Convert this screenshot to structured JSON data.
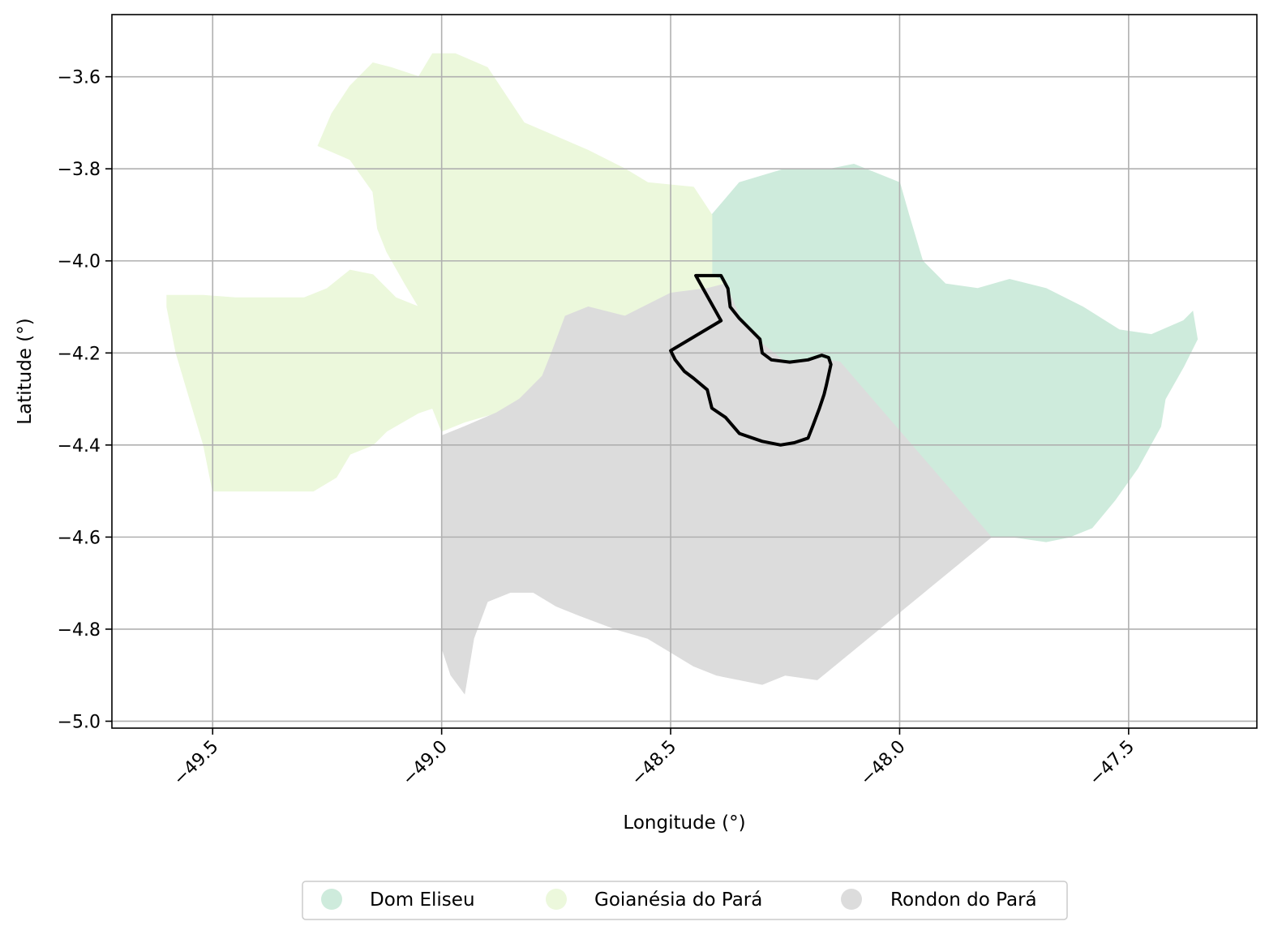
{
  "chart_data": {
    "type": "map",
    "xlabel": "Longitude (°)",
    "ylabel": "Latitude (°)",
    "xlim": [
      -49.72,
      -47.22
    ],
    "ylim": [
      -5.015,
      -3.465
    ],
    "x_ticks": [
      -49.5,
      -49.0,
      -48.5,
      -48.0,
      -47.5
    ],
    "x_tick_labels": [
      "−49.5",
      "−49.0",
      "−48.5",
      "−48.0",
      "−47.5"
    ],
    "y_ticks": [
      -3.6,
      -3.8,
      -4.0,
      -4.2,
      -4.4,
      -4.6,
      -4.8,
      -5.0
    ],
    "y_tick_labels": [
      "−3.6",
      "−3.8",
      "−4.0",
      "−4.2",
      "−4.4",
      "−4.6",
      "−4.8",
      "−5.0"
    ],
    "grid": true,
    "legend_position": "bottom-center",
    "regions": [
      {
        "name": "Dom Eliseu",
        "color": "#ceebdc",
        "polygon": [
          [
            -48.41,
            -3.9
          ],
          [
            -48.35,
            -3.83
          ],
          [
            -48.25,
            -3.8
          ],
          [
            -48.15,
            -3.8
          ],
          [
            -48.1,
            -3.79
          ],
          [
            -48.05,
            -3.81
          ],
          [
            -48.0,
            -3.83
          ],
          [
            -47.98,
            -3.9
          ],
          [
            -47.95,
            -4.0
          ],
          [
            -47.9,
            -4.05
          ],
          [
            -47.83,
            -4.06
          ],
          [
            -47.76,
            -4.04
          ],
          [
            -47.68,
            -4.06
          ],
          [
            -47.6,
            -4.1
          ],
          [
            -47.52,
            -4.15
          ],
          [
            -47.45,
            -4.16
          ],
          [
            -47.38,
            -4.13
          ],
          [
            -47.36,
            -4.11
          ],
          [
            -47.35,
            -4.17
          ],
          [
            -47.38,
            -4.23
          ],
          [
            -47.42,
            -4.3
          ],
          [
            -47.43,
            -4.36
          ],
          [
            -47.48,
            -4.45
          ],
          [
            -47.53,
            -4.52
          ],
          [
            -47.58,
            -4.58
          ],
          [
            -47.63,
            -4.6
          ],
          [
            -47.68,
            -4.61
          ],
          [
            -47.75,
            -4.6
          ],
          [
            -47.8,
            -4.6
          ],
          [
            -48.13,
            -4.22
          ],
          [
            -48.18,
            -4.21
          ],
          [
            -48.25,
            -4.22
          ],
          [
            -48.3,
            -4.18
          ],
          [
            -48.35,
            -4.12
          ],
          [
            -48.38,
            -4.08
          ],
          [
            -48.41,
            -4.03
          ],
          [
            -48.41,
            -4.0
          ]
        ]
      },
      {
        "name": "Goianésia do Pará",
        "color": "#ecf8dc",
        "polygon": [
          [
            -49.6,
            -4.075
          ],
          [
            -49.52,
            -4.075
          ],
          [
            -49.45,
            -4.08
          ],
          [
            -49.3,
            -4.08
          ],
          [
            -49.25,
            -4.06
          ],
          [
            -49.2,
            -4.02
          ],
          [
            -49.15,
            -4.03
          ],
          [
            -49.1,
            -4.08
          ],
          [
            -49.05,
            -4.1
          ],
          [
            -49.08,
            -4.05
          ],
          [
            -49.12,
            -3.98
          ],
          [
            -49.14,
            -3.93
          ],
          [
            -49.15,
            -3.85
          ],
          [
            -49.2,
            -3.78
          ],
          [
            -49.27,
            -3.75
          ],
          [
            -49.24,
            -3.68
          ],
          [
            -49.2,
            -3.62
          ],
          [
            -49.15,
            -3.57
          ],
          [
            -49.11,
            -3.58
          ],
          [
            -49.05,
            -3.6
          ],
          [
            -49.02,
            -3.55
          ],
          [
            -48.97,
            -3.55
          ],
          [
            -48.9,
            -3.58
          ],
          [
            -48.86,
            -3.64
          ],
          [
            -48.82,
            -3.7
          ],
          [
            -48.75,
            -3.73
          ],
          [
            -48.68,
            -3.76
          ],
          [
            -48.6,
            -3.8
          ],
          [
            -48.55,
            -3.83
          ],
          [
            -48.45,
            -3.84
          ],
          [
            -48.41,
            -3.9
          ],
          [
            -48.41,
            -4.03
          ],
          [
            -48.38,
            -4.05
          ],
          [
            -48.42,
            -4.06
          ],
          [
            -48.5,
            -4.08
          ],
          [
            -48.6,
            -4.12
          ],
          [
            -48.68,
            -4.1
          ],
          [
            -48.73,
            -4.12
          ],
          [
            -48.76,
            -4.2
          ],
          [
            -48.78,
            -4.25
          ],
          [
            -48.83,
            -4.3
          ],
          [
            -48.88,
            -4.33
          ],
          [
            -48.95,
            -4.35
          ],
          [
            -49.0,
            -4.37
          ],
          [
            -49.02,
            -4.32
          ],
          [
            -49.05,
            -4.33
          ],
          [
            -49.12,
            -4.37
          ],
          [
            -49.15,
            -4.4
          ],
          [
            -49.2,
            -4.42
          ],
          [
            -49.23,
            -4.47
          ],
          [
            -49.28,
            -4.5
          ],
          [
            -49.5,
            -4.5
          ],
          [
            -49.52,
            -4.4
          ],
          [
            -49.55,
            -4.3
          ],
          [
            -49.58,
            -4.2
          ],
          [
            -49.6,
            -4.1
          ]
        ]
      },
      {
        "name": "Rondon do Pará",
        "color": "#dcdcdc",
        "polygon": [
          [
            -48.5,
            -4.07
          ],
          [
            -48.42,
            -4.06
          ],
          [
            -48.38,
            -4.05
          ],
          [
            -48.35,
            -4.12
          ],
          [
            -48.3,
            -4.18
          ],
          [
            -48.25,
            -4.22
          ],
          [
            -48.18,
            -4.21
          ],
          [
            -48.13,
            -4.22
          ],
          [
            -47.8,
            -4.6
          ],
          [
            -48.18,
            -4.91
          ],
          [
            -48.25,
            -4.9
          ],
          [
            -48.3,
            -4.92
          ],
          [
            -48.35,
            -4.91
          ],
          [
            -48.4,
            -4.9
          ],
          [
            -48.45,
            -4.88
          ],
          [
            -48.5,
            -4.85
          ],
          [
            -48.55,
            -4.82
          ],
          [
            -48.62,
            -4.8
          ],
          [
            -48.7,
            -4.77
          ],
          [
            -48.75,
            -4.75
          ],
          [
            -48.8,
            -4.72
          ],
          [
            -48.85,
            -4.72
          ],
          [
            -48.9,
            -4.74
          ],
          [
            -48.93,
            -4.82
          ],
          [
            -48.95,
            -4.94
          ],
          [
            -48.98,
            -4.9
          ],
          [
            -49.0,
            -4.84
          ],
          [
            -49.0,
            -4.6
          ],
          [
            -49.0,
            -4.38
          ],
          [
            -48.95,
            -4.36
          ],
          [
            -48.88,
            -4.33
          ],
          [
            -48.83,
            -4.3
          ],
          [
            -48.78,
            -4.25
          ],
          [
            -48.76,
            -4.2
          ],
          [
            -48.73,
            -4.12
          ],
          [
            -48.68,
            -4.1
          ],
          [
            -48.6,
            -4.12
          ]
        ]
      }
    ],
    "outline": {
      "color": "#000000",
      "polygon": [
        [
          -48.445,
          -4.032
        ],
        [
          -48.39,
          -4.032
        ],
        [
          -48.375,
          -4.06
        ],
        [
          -48.37,
          -4.1
        ],
        [
          -48.35,
          -4.125
        ],
        [
          -48.325,
          -4.15
        ],
        [
          -48.305,
          -4.17
        ],
        [
          -48.3,
          -4.2
        ],
        [
          -48.28,
          -4.215
        ],
        [
          -48.24,
          -4.22
        ],
        [
          -48.2,
          -4.215
        ],
        [
          -48.17,
          -4.205
        ],
        [
          -48.155,
          -4.21
        ],
        [
          -48.15,
          -4.225
        ],
        [
          -48.16,
          -4.27
        ],
        [
          -48.165,
          -4.29
        ],
        [
          -48.175,
          -4.32
        ],
        [
          -48.19,
          -4.36
        ],
        [
          -48.2,
          -4.385
        ],
        [
          -48.23,
          -4.395
        ],
        [
          -48.26,
          -4.4
        ],
        [
          -48.3,
          -4.392
        ],
        [
          -48.35,
          -4.375
        ],
        [
          -48.38,
          -4.34
        ],
        [
          -48.41,
          -4.32
        ],
        [
          -48.42,
          -4.28
        ],
        [
          -48.45,
          -4.255
        ],
        [
          -48.47,
          -4.24
        ],
        [
          -48.49,
          -4.215
        ],
        [
          -48.5,
          -4.195
        ],
        [
          -48.39,
          -4.13
        ]
      ]
    },
    "legend": [
      {
        "label": "Dom Eliseu",
        "color": "#ceebdc"
      },
      {
        "label": "Goianésia do Pará",
        "color": "#ecf8dc"
      },
      {
        "label": "Rondon do Pará",
        "color": "#dcdcdc"
      }
    ]
  }
}
